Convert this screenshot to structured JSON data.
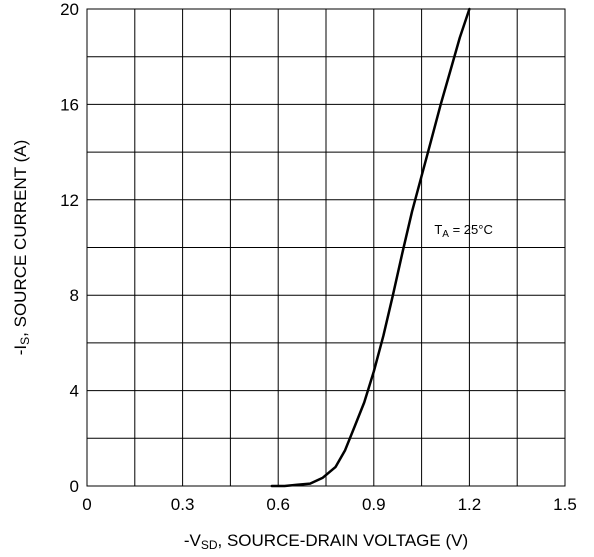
{
  "chart_data": {
    "type": "line",
    "xlabel": {
      "prefix": "-V",
      "sub": "SD",
      "rest": ", SOURCE-DRAIN VOLTAGE (V)"
    },
    "ylabel": {
      "prefix": "-I",
      "sub": "S",
      "rest": ", SOURCE CURRENT (A)"
    },
    "xlim": [
      0,
      1.5
    ],
    "ylim": [
      0,
      20
    ],
    "xticks": [
      0,
      0.3,
      0.6,
      0.9,
      1.2,
      1.5
    ],
    "xtick_labels": [
      "0",
      "0.3",
      "0.6",
      "0.9",
      "1.2",
      "1.5"
    ],
    "yticks": [
      0,
      4,
      8,
      12,
      16,
      20
    ],
    "ytick_labels": [
      "0",
      "4",
      "8",
      "12",
      "16",
      "20"
    ],
    "x_minor_grid": [
      0.15,
      0.45,
      0.75,
      1.05,
      1.35
    ],
    "y_minor_grid": [
      2,
      6,
      10,
      14,
      18
    ],
    "grid": true,
    "annotation": {
      "prefix": "T",
      "sub": "A",
      "rest": " = 25°C",
      "x": 1.09,
      "y": 12
    },
    "series": [
      {
        "x": [
          0.58,
          0.62,
          0.66,
          0.7,
          0.74,
          0.78,
          0.81,
          0.84,
          0.87,
          0.9,
          0.93,
          0.96,
          0.99,
          1.02,
          1.05,
          1.08,
          1.11,
          1.14,
          1.17,
          1.2
        ],
        "y": [
          0.0,
          0.0,
          0.05,
          0.1,
          0.35,
          0.8,
          1.5,
          2.5,
          3.5,
          4.8,
          6.3,
          8.0,
          9.8,
          11.5,
          13.0,
          14.5,
          16.0,
          17.4,
          18.8,
          20.0
        ]
      }
    ]
  }
}
